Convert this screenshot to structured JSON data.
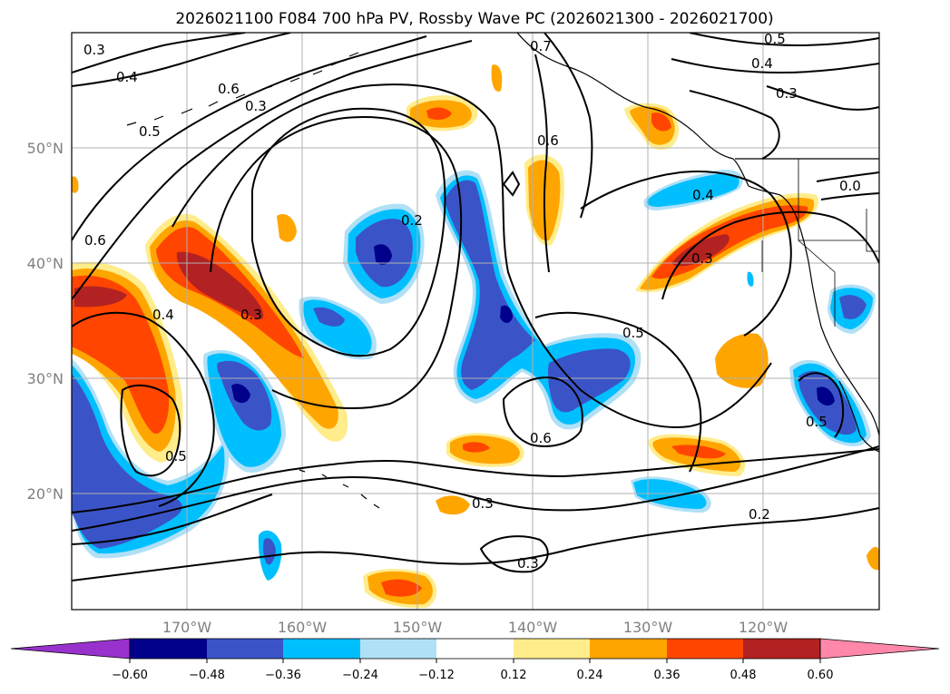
{
  "title": "2026021100 F084 700 hPa PV, Rossby Wave PC (2026021300 - 2026021700)",
  "map": {
    "lon_ticks": [
      "170°W",
      "160°W",
      "150°W",
      "140°W",
      "130°W",
      "120°W"
    ],
    "lat_ticks": [
      "50°N",
      "40°N",
      "30°N",
      "20°N"
    ],
    "grid": true,
    "contour_labels": [
      "0.3",
      "0.4",
      "0.6",
      "0.5",
      "0.3",
      "0.7",
      "0.5",
      "0.4",
      "0.3",
      "0.6",
      "0.6",
      "0.2",
      "0.3",
      "0.4",
      "0.4",
      "0.3",
      "0.5",
      "0.5",
      "0.6",
      "0.3",
      "0.2",
      "0.5",
      "0.3",
      "0.0"
    ]
  },
  "colorbar": {
    "ticks": [
      "−0.60",
      "−0.48",
      "−0.36",
      "−0.24",
      "−0.12",
      "0.12",
      "0.24",
      "0.36",
      "0.48",
      "0.60"
    ],
    "colors": [
      "#9932cc",
      "#00008b",
      "#3a54c8",
      "#00bfff",
      "#b0e0f6",
      "#ffffff",
      "#ffec8b",
      "#ffa500",
      "#ff4500",
      "#b22222",
      "#ff88aa"
    ],
    "extend": "both"
  }
}
